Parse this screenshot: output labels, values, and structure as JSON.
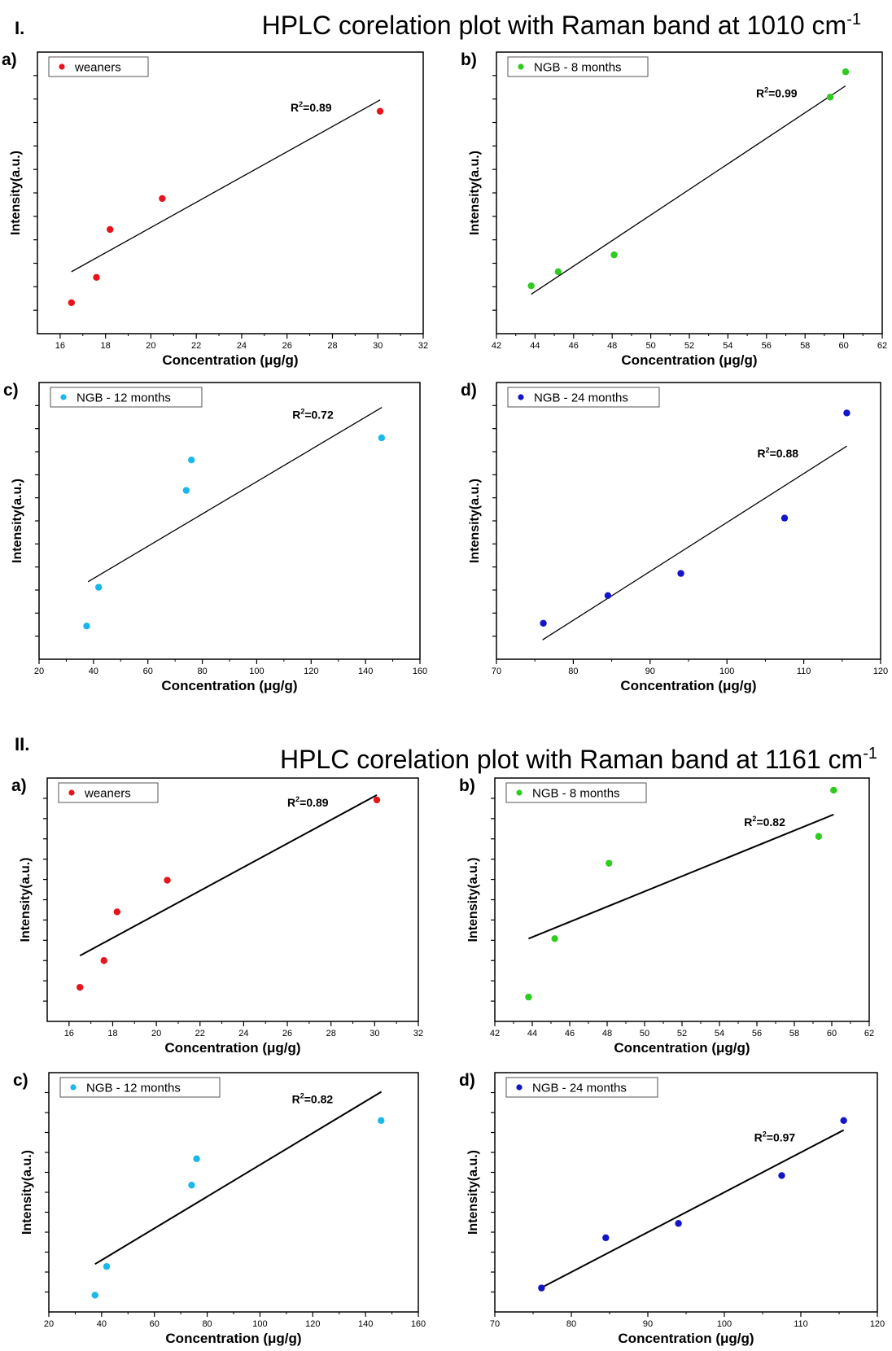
{
  "sections": [
    {
      "numeral": "I.",
      "title_main": "HPLC corelation plot with Raman band at 1010 cm",
      "title_sup": "-1"
    },
    {
      "numeral": "II.",
      "title_main": "HPLC corelation plot with Raman band at 1161 cm",
      "title_sup": "-1"
    }
  ],
  "colors": {
    "weaners": "#e8141b",
    "ngb8": "#2ecc1f",
    "ngb12": "#1ab8e8",
    "ngb24": "#1414c8",
    "line": "#000000"
  },
  "chart_data": [
    {
      "id": "I-a",
      "panel_label": "a)",
      "type": "scatter",
      "series_name": "weaners",
      "color_key": "weaners",
      "x": [
        16.5,
        17.6,
        18.2,
        20.5,
        30.1
      ],
      "y": [
        0.11,
        0.2,
        0.37,
        0.48,
        0.79
      ],
      "fit_x": [
        16.5,
        30.1
      ],
      "fit_y": [
        0.22,
        0.83
      ],
      "r2_base": "R",
      "r2_sup": "2",
      "r2_value": "=0.89",
      "xlabel": "Concentration (μg/g)",
      "ylabel": "Intensity(a.u.)",
      "xlim": [
        15,
        32
      ],
      "xticks": [
        16,
        18,
        20,
        22,
        24,
        26,
        28,
        30,
        32
      ],
      "ylim": [
        0,
        1
      ]
    },
    {
      "id": "I-b",
      "panel_label": "b)",
      "type": "scatter",
      "series_name": "NGB - 8 months",
      "color_key": "ngb8",
      "x": [
        43.8,
        45.2,
        48.1,
        59.3,
        60.1
      ],
      "y": [
        0.17,
        0.22,
        0.28,
        0.84,
        0.93
      ],
      "fit_x": [
        43.8,
        60.1
      ],
      "fit_y": [
        0.14,
        0.88
      ],
      "r2_base": "R",
      "r2_sup": "2",
      "r2_value": "=0.99",
      "xlabel": "Concentration (μg/g)",
      "ylabel": "Intensity(a.u.)",
      "xlim": [
        42,
        62
      ],
      "xticks": [
        42,
        44,
        46,
        48,
        50,
        52,
        54,
        56,
        58,
        60,
        62
      ],
      "ylim": [
        0,
        1
      ]
    },
    {
      "id": "I-c",
      "panel_label": "c)",
      "type": "scatter",
      "series_name": "NGB - 12 months",
      "color_key": "ngb12",
      "x": [
        37.5,
        41.9,
        74.1,
        76.0,
        145.9
      ],
      "y": [
        0.12,
        0.26,
        0.61,
        0.72,
        0.8
      ],
      "fit_x": [
        38,
        146
      ],
      "fit_y": [
        0.28,
        0.91
      ],
      "r2_base": "R",
      "r2_sup": "2",
      "r2_value": "=0.72",
      "xlabel": "Concentration (μg/g)",
      "ylabel": "Intensity(a.u.)",
      "xlim": [
        20,
        160
      ],
      "xticks": [
        20,
        40,
        60,
        80,
        100,
        120,
        140,
        160
      ],
      "ylim": [
        0,
        1
      ]
    },
    {
      "id": "I-d",
      "panel_label": "d)",
      "type": "scatter",
      "series_name": "NGB - 24 months",
      "color_key": "ngb24",
      "x": [
        76.1,
        84.5,
        94.0,
        107.5,
        115.6
      ],
      "y": [
        0.13,
        0.23,
        0.31,
        0.51,
        0.89
      ],
      "fit_x": [
        76,
        115.6
      ],
      "fit_y": [
        0.07,
        0.77
      ],
      "r2_base": "R",
      "r2_sup": "2",
      "r2_value": "=0.88",
      "xlabel": "Concentration (μg/g)",
      "ylabel": "Intensity(a.u.)",
      "xlim": [
        70,
        120
      ],
      "xticks": [
        70,
        80,
        90,
        100,
        110,
        120
      ],
      "ylim": [
        0,
        1
      ]
    },
    {
      "id": "II-a",
      "panel_label": "a)",
      "type": "scatter",
      "series_name": "weaners",
      "color_key": "weaners",
      "x": [
        16.5,
        17.6,
        18.2,
        20.5,
        30.1
      ],
      "y": [
        0.14,
        0.25,
        0.45,
        0.58,
        0.91
      ],
      "fit_x": [
        16.5,
        30.1
      ],
      "fit_y": [
        0.27,
        0.93
      ],
      "r2_base": "R",
      "r2_sup": "2",
      "r2_value": "=0.89",
      "xlabel": "Concentration (μg/g)",
      "ylabel": "Intensity(a.u.)",
      "xlim": [
        15,
        32
      ],
      "xticks": [
        16,
        18,
        20,
        22,
        24,
        26,
        28,
        30,
        32
      ],
      "ylim": [
        0,
        1
      ]
    },
    {
      "id": "II-b",
      "panel_label": "b)",
      "type": "scatter",
      "series_name": "NGB - 8 months",
      "color_key": "ngb8",
      "x": [
        43.8,
        45.2,
        48.1,
        59.3,
        60.1
      ],
      "y": [
        0.1,
        0.34,
        0.65,
        0.76,
        0.95
      ],
      "fit_x": [
        43.8,
        60.1
      ],
      "fit_y": [
        0.34,
        0.85
      ],
      "r2_base": "R",
      "r2_sup": "2",
      "r2_value": "=0.82",
      "xlabel": "Concentration (μg/g)",
      "ylabel": "Intensity(a.u.)",
      "xlim": [
        42,
        62
      ],
      "xticks": [
        42,
        44,
        46,
        48,
        50,
        52,
        54,
        56,
        58,
        60,
        62
      ],
      "ylim": [
        0,
        1
      ]
    },
    {
      "id": "II-c",
      "panel_label": "c)",
      "type": "scatter",
      "series_name": "NGB - 12 months",
      "color_key": "ngb12",
      "x": [
        37.5,
        41.9,
        74.1,
        76.0,
        145.9
      ],
      "y": [
        0.07,
        0.19,
        0.53,
        0.64,
        0.8
      ],
      "fit_x": [
        37.5,
        146
      ],
      "fit_y": [
        0.2,
        0.92
      ],
      "r2_base": "R",
      "r2_sup": "2",
      "r2_value": "=0.82",
      "xlabel": "Concentration (μg/g)",
      "ylabel": "Intensity(a.u.)",
      "xlim": [
        20,
        160
      ],
      "xticks": [
        20,
        40,
        60,
        80,
        100,
        120,
        140,
        160
      ],
      "ylim": [
        0,
        1
      ]
    },
    {
      "id": "II-d",
      "panel_label": "d)",
      "type": "scatter",
      "series_name": "NGB - 24 months",
      "color_key": "ngb24",
      "x": [
        76.1,
        84.5,
        94.0,
        107.5,
        115.6
      ],
      "y": [
        0.1,
        0.31,
        0.37,
        0.57,
        0.8
      ],
      "fit_x": [
        76,
        115.6
      ],
      "fit_y": [
        0.1,
        0.76
      ],
      "r2_base": "R",
      "r2_sup": "2",
      "r2_value": "=0.97",
      "xlabel": "Concentration (μg/g)",
      "ylabel": "Intensity(a.u.)",
      "xlim": [
        70,
        120
      ],
      "xticks": [
        70,
        80,
        90,
        100,
        110,
        120
      ],
      "ylim": [
        0,
        1
      ]
    }
  ]
}
